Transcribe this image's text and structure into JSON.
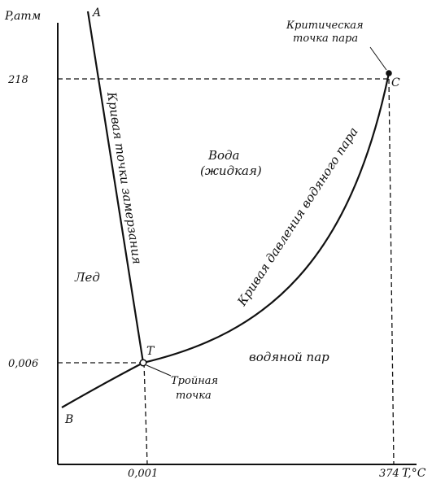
{
  "axes": {
    "y_label": "P,атм",
    "x_label": "T,°C",
    "y_ticks": [
      "218",
      "0,006"
    ],
    "x_ticks": [
      "0,001",
      "374"
    ]
  },
  "points": {
    "A": "A",
    "B": "B",
    "C": "C",
    "T": "T"
  },
  "annotations": {
    "critical_line1": "Критическая",
    "critical_line2": "точка пара",
    "triple_line1": "Тройная",
    "triple_line2": "точка",
    "freezing_curve": "Кривая точки замерзания",
    "vapor_curve": "Кривая давления водяного пара"
  },
  "regions": {
    "ice": "Лед",
    "water_line1": "Вода",
    "water_line2": "(жидкая)",
    "vapor": "водяной пар"
  }
}
